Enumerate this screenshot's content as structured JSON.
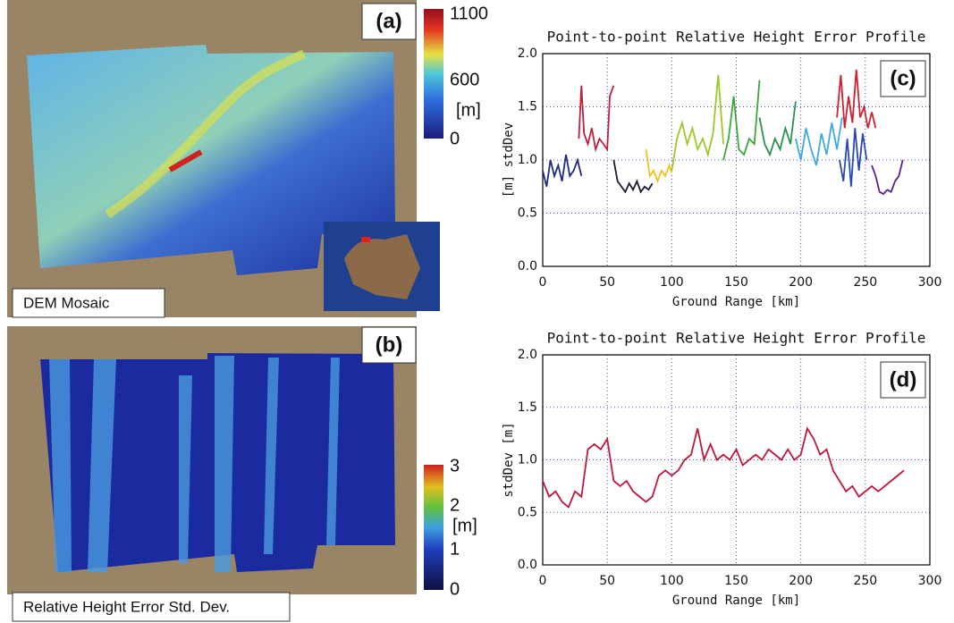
{
  "panels": [
    {
      "label": "(a)",
      "caption": "DEM Mosaic",
      "colorbar": [
        "1100",
        "600",
        "[m]",
        "0"
      ]
    },
    {
      "label": "(b)",
      "caption": "Relative Height Error Std. Dev.",
      "colorbar": [
        "3",
        "2",
        "[m]",
        "1",
        "0"
      ]
    }
  ],
  "chart_data": [
    {
      "type": "line",
      "panel_label": "(c)",
      "title": "Point-to-point Relative Height Error Profile",
      "x_label": "Ground Range [km]",
      "y_label": "[m] stdDev",
      "xlim": [
        0,
        300
      ],
      "ylim": [
        0,
        2
      ],
      "xticks": [
        0,
        50,
        100,
        150,
        200,
        250,
        300
      ],
      "yticks": [
        {
          "value": 0,
          "label": "0.0"
        },
        {
          "value": 0.5,
          "label": "0.5"
        },
        {
          "value": 1,
          "label": "1.0"
        },
        {
          "value": 1.5,
          "label": "1.5"
        },
        {
          "value": 2,
          "label": "2.0"
        }
      ],
      "grid": true,
      "series": [
        {
          "color": "#1f2a80",
          "x": [
            0,
            3,
            6,
            9,
            12,
            15,
            18,
            21,
            24,
            27,
            30
          ],
          "values": [
            0.9,
            0.75,
            1.0,
            0.85,
            0.95,
            0.8,
            1.05,
            0.85,
            0.9,
            1.0,
            0.85
          ]
        },
        {
          "color": "#c0203a",
          "x": [
            28,
            30,
            32,
            35,
            38,
            41,
            44,
            47,
            50,
            52,
            55
          ],
          "values": [
            1.2,
            1.7,
            1.25,
            1.15,
            1.3,
            1.1,
            1.2,
            1.15,
            1.1,
            1.6,
            1.7
          ]
        },
        {
          "color": "#1a1a30",
          "x": [
            55,
            58,
            61,
            64,
            67,
            70,
            73,
            76,
            79,
            82,
            85
          ],
          "values": [
            1.0,
            0.8,
            0.75,
            0.7,
            0.78,
            0.72,
            0.8,
            0.7,
            0.75,
            0.72,
            0.78
          ]
        },
        {
          "color": "#f0c020",
          "x": [
            80,
            83,
            86,
            89,
            92,
            95,
            98,
            100
          ],
          "values": [
            1.1,
            0.85,
            0.9,
            0.8,
            0.9,
            0.85,
            0.95,
            0.88
          ]
        },
        {
          "color": "#9cc828",
          "x": [
            100,
            104,
            108,
            112,
            116,
            120,
            124,
            128,
            132,
            136,
            140
          ],
          "values": [
            0.9,
            1.2,
            1.35,
            1.15,
            1.3,
            1.1,
            1.2,
            1.05,
            1.25,
            1.8,
            1.15
          ]
        },
        {
          "color": "#3aa838",
          "x": [
            140,
            144,
            148,
            152,
            156,
            160,
            164,
            168
          ],
          "values": [
            1.0,
            1.2,
            1.6,
            1.1,
            1.05,
            1.2,
            1.15,
            1.75
          ]
        },
        {
          "color": "#2a9050",
          "x": [
            168,
            172,
            176,
            180,
            184,
            188,
            192,
            196
          ],
          "values": [
            1.4,
            1.15,
            1.05,
            1.2,
            1.1,
            1.3,
            1.15,
            1.55
          ]
        },
        {
          "color": "#40a8e0",
          "x": [
            196,
            200,
            204,
            208,
            212,
            216,
            220,
            224,
            228,
            232
          ],
          "values": [
            1.2,
            1.0,
            1.3,
            1.1,
            0.95,
            1.25,
            1.05,
            1.35,
            1.1,
            1.4
          ]
        },
        {
          "color": "#2848b8",
          "x": [
            230,
            233,
            236,
            239,
            242,
            245,
            248,
            251
          ],
          "values": [
            1.0,
            0.8,
            1.2,
            0.75,
            1.3,
            0.9,
            1.25,
            1.0
          ]
        },
        {
          "color": "#d02030",
          "x": [
            228,
            231,
            234,
            237,
            240,
            243,
            246,
            249,
            252,
            255,
            258
          ],
          "values": [
            1.4,
            1.8,
            1.3,
            1.6,
            1.35,
            1.85,
            1.4,
            1.5,
            1.3,
            1.45,
            1.3
          ]
        },
        {
          "color": "#5a2090",
          "x": [
            255,
            258,
            261,
            264,
            267,
            270,
            273,
            276,
            279
          ],
          "values": [
            0.95,
            0.85,
            0.7,
            0.68,
            0.72,
            0.7,
            0.8,
            0.85,
            1.0
          ]
        }
      ]
    },
    {
      "type": "line",
      "panel_label": "(d)",
      "title": "Point-to-point Relative Height Error Profile",
      "x_label": "Ground Range [km]",
      "y_label": "stdDev [m]",
      "xlim": [
        0,
        300
      ],
      "ylim": [
        0,
        2
      ],
      "xticks": [
        0,
        50,
        100,
        150,
        200,
        250,
        300
      ],
      "yticks": [
        {
          "value": 0,
          "label": "0.0"
        },
        {
          "value": 0.5,
          "label": "0.5"
        },
        {
          "value": 1,
          "label": "1.0"
        },
        {
          "value": 1.5,
          "label": "1.5"
        },
        {
          "value": 2,
          "label": "2.0"
        }
      ],
      "grid": true,
      "series": [
        {
          "color": "#c0183c",
          "x": [
            0,
            5,
            10,
            15,
            20,
            25,
            30,
            35,
            40,
            45,
            50,
            55,
            60,
            65,
            70,
            75,
            80,
            85,
            90,
            95,
            100,
            105,
            110,
            115,
            120,
            125,
            130,
            135,
            140,
            145,
            150,
            155,
            160,
            165,
            170,
            175,
            180,
            185,
            190,
            195,
            200,
            205,
            210,
            215,
            220,
            225,
            230,
            235,
            240,
            245,
            250,
            255,
            260,
            265,
            270,
            275,
            280
          ],
          "values": [
            0.8,
            0.65,
            0.7,
            0.6,
            0.55,
            0.7,
            0.65,
            1.1,
            1.15,
            1.1,
            1.2,
            0.8,
            0.75,
            0.8,
            0.7,
            0.65,
            0.6,
            0.65,
            0.85,
            0.9,
            0.85,
            0.9,
            1.0,
            1.05,
            1.3,
            1.0,
            1.15,
            1.0,
            1.05,
            1.0,
            1.1,
            0.95,
            1.0,
            1.05,
            1.0,
            1.1,
            1.05,
            1.0,
            1.1,
            1.0,
            1.05,
            1.3,
            1.2,
            1.05,
            1.1,
            0.9,
            0.8,
            0.7,
            0.75,
            0.65,
            0.7,
            0.75,
            0.7,
            0.75,
            0.8,
            0.85,
            0.9
          ]
        }
      ]
    }
  ]
}
